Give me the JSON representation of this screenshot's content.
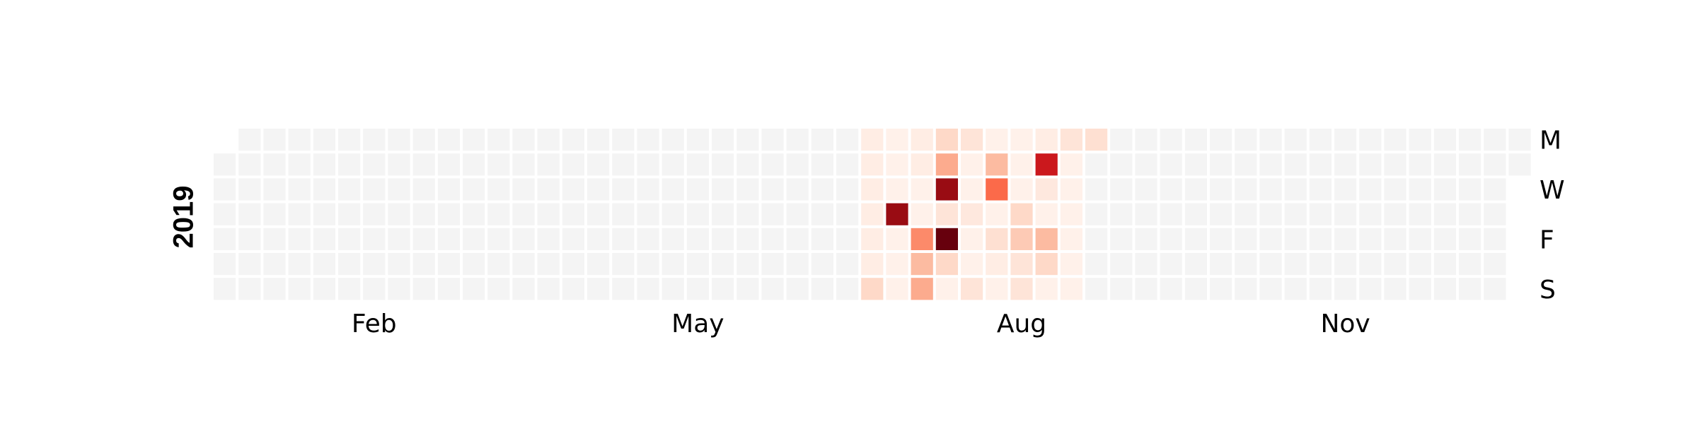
{
  "chart_data": {
    "type": "heatmap",
    "title": "",
    "year": "2019",
    "x_tick_labels": [
      "Feb",
      "May",
      "Aug",
      "Nov"
    ],
    "x_tick_weeks": [
      6,
      19,
      32,
      45
    ],
    "y_tick_labels": [
      "M",
      "W",
      "F",
      "S"
    ],
    "y_tick_days": [
      0,
      2,
      4,
      6
    ],
    "first_weekday": 1,
    "num_days": 365,
    "colormap": "Reds",
    "empty_color": "#f4f4f4",
    "vmin": 0,
    "vmax": 20,
    "values": {
      "2019-07-01": 1,
      "2019-07-02": 1,
      "2019-07-03": 1,
      "2019-07-04": 1,
      "2019-07-05": 1,
      "2019-07-06": 1,
      "2019-07-07": 3,
      "2019-07-08": 0.5,
      "2019-07-09": 0.5,
      "2019-07-10": 0.5,
      "2019-07-11": 18,
      "2019-07-12": 0.5,
      "2019-07-13": 0.5,
      "2019-07-14": 0.5,
      "2019-07-15": 1,
      "2019-07-16": 1,
      "2019-07-17": 0.5,
      "2019-07-18": 0.5,
      "2019-07-19": 8,
      "2019-07-20": 5,
      "2019-07-21": 6,
      "2019-07-22": 3,
      "2019-07-23": 6,
      "2019-07-24": 18,
      "2019-07-25": 2,
      "2019-07-26": 20,
      "2019-07-27": 3,
      "2019-07-28": 0.5,
      "2019-07-29": 2,
      "2019-07-30": 0.5,
      "2019-07-31": 0.5,
      "2019-08-01": 1.5,
      "2019-08-02": 0.5,
      "2019-08-03": 0.5,
      "2019-08-04": 2,
      "2019-08-05": 0.5,
      "2019-08-06": 5,
      "2019-08-07": 10,
      "2019-08-08": 0.5,
      "2019-08-09": 2.5,
      "2019-08-10": 1,
      "2019-08-11": 0.5,
      "2019-08-12": 0.5,
      "2019-08-13": 0.5,
      "2019-08-14": 0.5,
      "2019-08-15": 3,
      "2019-08-16": 4,
      "2019-08-17": 2,
      "2019-08-18": 2,
      "2019-08-19": 1,
      "2019-08-20": 15,
      "2019-08-21": 1.5,
      "2019-08-22": 0.5,
      "2019-08-23": 5,
      "2019-08-24": 3,
      "2019-08-25": 0.5,
      "2019-08-26": 2,
      "2019-08-27": 0.5,
      "2019-08-28": 0.5,
      "2019-08-29": 0.5,
      "2019-08-30": 0.5,
      "2019-08-31": 0.5,
      "2019-09-01": 0.5,
      "2019-09-02": 2.5
    }
  }
}
